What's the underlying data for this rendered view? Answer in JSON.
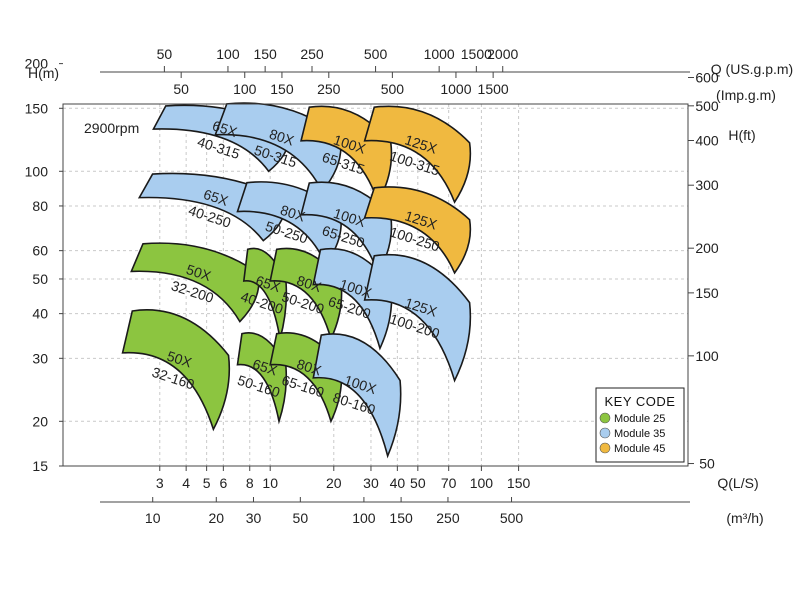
{
  "chart_data": {
    "type": "pump_performance_map",
    "note": "2900rpm",
    "axes": {
      "left": {
        "label": "H(m)",
        "ticks": [
          200,
          150,
          100,
          80,
          60,
          50,
          40,
          30,
          20,
          15
        ]
      },
      "right": {
        "label": "H(ft)",
        "ticks": [
          600,
          500,
          400,
          300,
          200,
          150,
          100,
          50
        ]
      },
      "bottom1": {
        "label": "Q(L/S)",
        "ticks": [
          3,
          4,
          5,
          6,
          8,
          10,
          20,
          30,
          40,
          50,
          70,
          100,
          150
        ]
      },
      "bottom2": {
        "label": "(m³/h)",
        "ticks": [
          10,
          20,
          30,
          50,
          100,
          150,
          250,
          500
        ]
      },
      "top1": {
        "label": "Q (US.g.p.m)",
        "ticks": [
          50,
          100,
          150,
          250,
          500,
          1000,
          1500,
          2000
        ]
      },
      "top2": {
        "label": "(Imp.g.m)",
        "ticks": [
          50,
          100,
          150,
          250,
          500,
          1000,
          1500
        ]
      }
    },
    "grid": true,
    "legend": {
      "title": "KEY CODE",
      "position": "bottom-right",
      "items": [
        {
          "label": "Module  25",
          "color": "#8cc540"
        },
        {
          "label": "Module  35",
          "color": "#a9cdef"
        },
        {
          "label": "Module  45",
          "color": "#f0b940"
        }
      ]
    },
    "regions": [
      {
        "model": "65X",
        "size": "40-315",
        "module": "Module  35",
        "q_range_ls": [
          2.8,
          12.5
        ],
        "h_range_m": [
          100,
          155
        ]
      },
      {
        "model": "80X",
        "size": "50-315",
        "module": "Module  35",
        "q_range_ls": [
          5.5,
          22
        ],
        "h_range_m": [
          88,
          158
        ]
      },
      {
        "model": "100X",
        "size": "65-315",
        "module": "Module  45",
        "q_range_ls": [
          14,
          38
        ],
        "h_range_m": [
          82,
          155
        ]
      },
      {
        "model": "125X",
        "size": "100-315",
        "module": "Module  45",
        "q_range_ls": [
          28,
          90
        ],
        "h_range_m": [
          82,
          155
        ]
      },
      {
        "model": "65X",
        "size": "40-250",
        "module": "Module  35",
        "q_range_ls": [
          2.4,
          12
        ],
        "h_range_m": [
          64,
          100
        ]
      },
      {
        "model": "80X",
        "size": "50-250",
        "module": "Module  35",
        "q_range_ls": [
          7,
          22
        ],
        "h_range_m": [
          55,
          95
        ]
      },
      {
        "model": "100X",
        "size": "65-250",
        "module": "Module  35",
        "q_range_ls": [
          14,
          38
        ],
        "h_range_m": [
          52,
          95
        ]
      },
      {
        "model": "125X",
        "size": "100-250",
        "module": "Module  45",
        "q_range_ls": [
          28,
          90
        ],
        "h_range_m": [
          52,
          92
        ]
      },
      {
        "model": "50X",
        "size": "32-200",
        "module": "Module  25",
        "q_range_ls": [
          2.2,
          9
        ],
        "h_range_m": [
          38,
          64
        ]
      },
      {
        "model": "65X",
        "size": "40-200",
        "module": "Module  25",
        "q_range_ls": [
          7.5,
          12
        ],
        "h_range_m": [
          34,
          62
        ]
      },
      {
        "model": "80X",
        "size": "50-200",
        "module": "Module  25",
        "q_range_ls": [
          10,
          22
        ],
        "h_range_m": [
          34,
          62
        ]
      },
      {
        "model": "100X",
        "size": "65-200",
        "module": "Module  35",
        "q_range_ls": [
          16,
          38
        ],
        "h_range_m": [
          32,
          62
        ]
      },
      {
        "model": "125X",
        "size": "100-200",
        "module": "Module  35",
        "q_range_ls": [
          28,
          90
        ],
        "h_range_m": [
          26,
          60
        ]
      },
      {
        "model": "50X",
        "size": "32-160",
        "module": "Module  25",
        "q_range_ls": [
          2,
          6.5
        ],
        "h_range_m": [
          19,
          42
        ]
      },
      {
        "model": "65X",
        "size": "50-160",
        "module": "Module  25",
        "q_range_ls": [
          7,
          12
        ],
        "h_range_m": [
          20,
          36
        ]
      },
      {
        "model": "80X",
        "size": "65-160",
        "module": "Module  25",
        "q_range_ls": [
          10,
          22
        ],
        "h_range_m": [
          20,
          36
        ]
      },
      {
        "model": "100X",
        "size": "80-160",
        "module": "Module  35",
        "q_range_ls": [
          16,
          42
        ],
        "h_range_m": [
          16,
          36
        ]
      }
    ]
  }
}
